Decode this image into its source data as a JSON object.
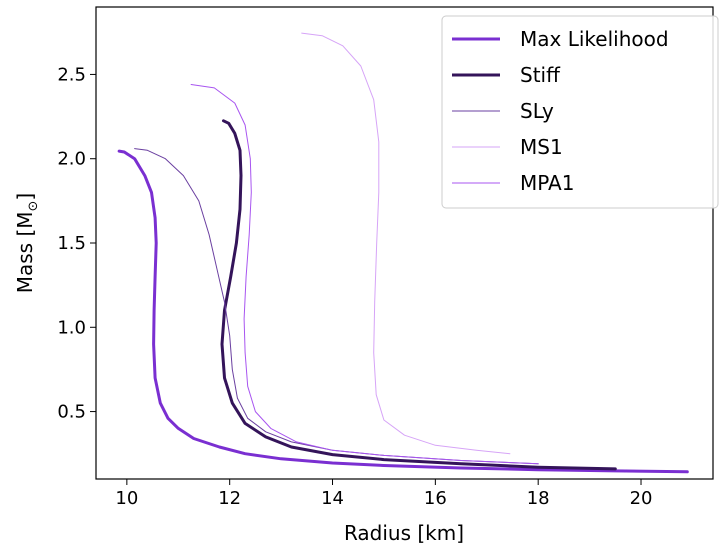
{
  "chart_data": {
    "type": "line",
    "title": "",
    "xlabel": "Radius [km]",
    "ylabel": "Mass [M",
    "ylabel_sub": "⊙",
    "ylabel_close": "]",
    "xlim": [
      9.4,
      21.4
    ],
    "ylim": [
      0.1,
      2.9
    ],
    "xticks": [
      10,
      12,
      14,
      16,
      18,
      20
    ],
    "xtick_labels": [
      "10",
      "12",
      "14",
      "16",
      "18",
      "20"
    ],
    "yticks": [
      0.5,
      1.0,
      1.5,
      2.0,
      2.5
    ],
    "ytick_labels": [
      "0.5",
      "1.0",
      "1.5",
      "2.0",
      "2.5"
    ],
    "grid": false,
    "legend_position": "top-right",
    "series": [
      {
        "name": "Max Likelihood",
        "color": "#7a2fd1",
        "width": 3,
        "points": [
          [
            20.9,
            0.143
          ],
          [
            19.5,
            0.148
          ],
          [
            18.0,
            0.155
          ],
          [
            16.5,
            0.165
          ],
          [
            15.0,
            0.18
          ],
          [
            14.0,
            0.195
          ],
          [
            13.0,
            0.22
          ],
          [
            12.3,
            0.25
          ],
          [
            11.8,
            0.29
          ],
          [
            11.3,
            0.34
          ],
          [
            11.0,
            0.4
          ],
          [
            10.8,
            0.46
          ],
          [
            10.65,
            0.55
          ],
          [
            10.55,
            0.7
          ],
          [
            10.52,
            0.9
          ],
          [
            10.53,
            1.1
          ],
          [
            10.55,
            1.3
          ],
          [
            10.57,
            1.5
          ],
          [
            10.55,
            1.65
          ],
          [
            10.48,
            1.8
          ],
          [
            10.35,
            1.9
          ],
          [
            10.15,
            2.0
          ],
          [
            9.95,
            2.04
          ],
          [
            9.85,
            2.045
          ]
        ]
      },
      {
        "name": "Stiff",
        "color": "#34145a",
        "width": 3,
        "points": [
          [
            19.5,
            0.16
          ],
          [
            18.0,
            0.17
          ],
          [
            16.5,
            0.19
          ],
          [
            15.0,
            0.215
          ],
          [
            14.0,
            0.245
          ],
          [
            13.2,
            0.29
          ],
          [
            12.7,
            0.35
          ],
          [
            12.3,
            0.43
          ],
          [
            12.05,
            0.55
          ],
          [
            11.9,
            0.7
          ],
          [
            11.85,
            0.9
          ],
          [
            11.9,
            1.1
          ],
          [
            12.02,
            1.3
          ],
          [
            12.13,
            1.5
          ],
          [
            12.2,
            1.7
          ],
          [
            12.22,
            1.9
          ],
          [
            12.2,
            2.05
          ],
          [
            12.1,
            2.15
          ],
          [
            11.98,
            2.21
          ],
          [
            11.88,
            2.225
          ]
        ]
      },
      {
        "name": "SLy",
        "color": "#6a3fa0",
        "width": 1,
        "points": [
          [
            18.0,
            0.19
          ],
          [
            16.5,
            0.21
          ],
          [
            15.0,
            0.24
          ],
          [
            14.0,
            0.27
          ],
          [
            13.2,
            0.32
          ],
          [
            12.7,
            0.38
          ],
          [
            12.35,
            0.46
          ],
          [
            12.15,
            0.58
          ],
          [
            12.05,
            0.75
          ],
          [
            12.0,
            0.95
          ],
          [
            11.9,
            1.15
          ],
          [
            11.75,
            1.35
          ],
          [
            11.6,
            1.55
          ],
          [
            11.4,
            1.75
          ],
          [
            11.1,
            1.9
          ],
          [
            10.75,
            2.0
          ],
          [
            10.4,
            2.05
          ],
          [
            10.15,
            2.06
          ]
        ]
      },
      {
        "name": "MS1",
        "color": "#d6a4f7",
        "width": 1,
        "points": [
          [
            17.45,
            0.25
          ],
          [
            16.8,
            0.27
          ],
          [
            16.0,
            0.3
          ],
          [
            15.4,
            0.36
          ],
          [
            15.0,
            0.45
          ],
          [
            14.85,
            0.6
          ],
          [
            14.8,
            0.85
          ],
          [
            14.82,
            1.15
          ],
          [
            14.86,
            1.5
          ],
          [
            14.9,
            1.8
          ],
          [
            14.9,
            2.1
          ],
          [
            14.8,
            2.35
          ],
          [
            14.55,
            2.55
          ],
          [
            14.2,
            2.67
          ],
          [
            13.8,
            2.73
          ],
          [
            13.4,
            2.745
          ]
        ]
      },
      {
        "name": "MPA1",
        "color": "#a855f0",
        "width": 1,
        "points": [
          [
            18.0,
            0.19
          ],
          [
            16.5,
            0.21
          ],
          [
            15.0,
            0.24
          ],
          [
            14.0,
            0.27
          ],
          [
            13.3,
            0.32
          ],
          [
            12.8,
            0.4
          ],
          [
            12.5,
            0.5
          ],
          [
            12.35,
            0.65
          ],
          [
            12.3,
            0.85
          ],
          [
            12.28,
            1.05
          ],
          [
            12.32,
            1.3
          ],
          [
            12.38,
            1.55
          ],
          [
            12.42,
            1.8
          ],
          [
            12.4,
            2.0
          ],
          [
            12.3,
            2.2
          ],
          [
            12.1,
            2.33
          ],
          [
            11.7,
            2.42
          ],
          [
            11.25,
            2.44
          ]
        ]
      }
    ]
  }
}
